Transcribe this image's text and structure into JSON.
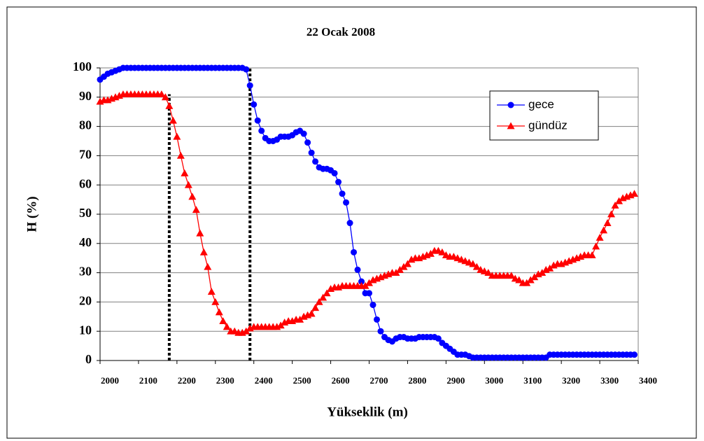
{
  "chart_data": {
    "type": "line",
    "title": "22 Ocak 2008",
    "xlabel": "Yükseklik (m)",
    "ylabel": "H (%)",
    "x": [
      2000,
      2010,
      2020,
      2030,
      2040,
      2050,
      2060,
      2070,
      2080,
      2090,
      2100,
      2110,
      2120,
      2130,
      2140,
      2150,
      2160,
      2170,
      2180,
      2190,
      2200,
      2210,
      2220,
      2230,
      2240,
      2250,
      2260,
      2270,
      2280,
      2290,
      2300,
      2310,
      2320,
      2330,
      2340,
      2350,
      2360,
      2370,
      2380,
      2390,
      2400,
      2410,
      2420,
      2430,
      2440,
      2450,
      2460,
      2470,
      2480,
      2490,
      2500,
      2510,
      2520,
      2530,
      2540,
      2550,
      2560,
      2570,
      2580,
      2590,
      2600,
      2610,
      2620,
      2630,
      2640,
      2650,
      2660,
      2670,
      2680,
      2690,
      2700,
      2710,
      2720,
      2730,
      2740,
      2750,
      2760,
      2770,
      2780,
      2790,
      2800,
      2810,
      2820,
      2830,
      2840,
      2850,
      2860,
      2870,
      2880,
      2890,
      2900,
      2910,
      2920,
      2930,
      2940,
      2950,
      2960,
      2970,
      2980,
      2990,
      3000,
      3010,
      3020,
      3030,
      3040,
      3050,
      3060,
      3070,
      3080,
      3090,
      3100,
      3110,
      3120,
      3130,
      3140,
      3150,
      3160,
      3170,
      3180,
      3190,
      3200,
      3210,
      3220,
      3230,
      3240,
      3250,
      3260,
      3270,
      3280,
      3290,
      3300,
      3310,
      3320,
      3330,
      3340,
      3350,
      3360,
      3370,
      3380,
      3390
    ],
    "series": [
      {
        "name": "gece",
        "color": "#0000ff",
        "marker": "circle",
        "values": [
          96,
          97,
          98,
          98.5,
          99,
          99.5,
          100,
          100,
          100,
          100,
          100,
          100,
          100,
          100,
          100,
          100,
          100,
          100,
          100,
          100,
          100,
          100,
          100,
          100,
          100,
          100,
          100,
          100,
          100,
          100,
          100,
          100,
          100,
          100,
          100,
          100,
          100,
          100,
          99.5,
          94,
          87.5,
          82,
          78.5,
          76,
          75,
          75,
          75.5,
          76.5,
          76.5,
          76.5,
          77,
          78,
          78.5,
          77.5,
          74.5,
          71,
          68,
          66,
          65.5,
          65.5,
          65,
          64,
          61,
          57,
          54,
          47,
          37,
          31,
          27,
          23,
          23,
          19,
          14,
          10,
          8,
          7,
          6.5,
          7.5,
          8,
          8,
          7.5,
          7.5,
          7.5,
          8,
          8,
          8,
          8,
          8,
          7.5,
          6,
          5,
          4,
          3,
          2,
          2,
          2,
          1.5,
          1,
          1,
          1,
          1,
          1,
          1,
          1,
          1,
          1,
          1,
          1,
          1,
          1,
          1,
          1,
          1,
          1,
          1,
          1,
          1,
          2,
          2,
          2,
          2,
          2,
          2,
          2,
          2,
          2,
          2,
          2,
          2,
          2,
          2,
          2,
          2,
          2,
          2,
          2,
          2,
          2,
          2,
          2
        ]
      },
      {
        "name": "gündüz",
        "color": "#ff0000",
        "marker": "triangle",
        "values": [
          88.5,
          89,
          89,
          89.5,
          90,
          90.5,
          91,
          91,
          91,
          91,
          91,
          91,
          91,
          91,
          91,
          91,
          91,
          90,
          87,
          82,
          76.5,
          70,
          64,
          60,
          56,
          51.5,
          43.5,
          37,
          32,
          23.5,
          20,
          16.5,
          13.5,
          11.5,
          10,
          10,
          9.5,
          9.5,
          10,
          11,
          11.5,
          11.5,
          11.5,
          11.5,
          11.5,
          11.5,
          11.5,
          12,
          13,
          13.5,
          13.5,
          14,
          14,
          15,
          15.5,
          16,
          18,
          20,
          21.5,
          23,
          24.5,
          25,
          25,
          25.5,
          25.5,
          25.5,
          25.5,
          25.5,
          25.5,
          25.5,
          26.5,
          27.5,
          28,
          28.5,
          29,
          29.5,
          30,
          30,
          31,
          32,
          33,
          34.5,
          35,
          35,
          35.5,
          36,
          36.5,
          37.5,
          37.5,
          37,
          36,
          35.5,
          35.5,
          35,
          34.5,
          34,
          33.5,
          33,
          32,
          31,
          30.5,
          30,
          29,
          29,
          29,
          29,
          29,
          29,
          28,
          27.5,
          26.5,
          26.5,
          27.5,
          28.5,
          29.5,
          30,
          31,
          31.5,
          32.5,
          33,
          33,
          33.5,
          34,
          34.5,
          35,
          35.5,
          36,
          36,
          36,
          39,
          42,
          44.5,
          47,
          50,
          53,
          54.5,
          55.5,
          56,
          56.5,
          57
        ]
      }
    ],
    "reference_lines": [
      {
        "x": 2180,
        "y": 91
      },
      {
        "x": 2390,
        "y": 100
      }
    ],
    "xlim": [
      2000,
      3400
    ],
    "xticks": [
      2000,
      2100,
      2200,
      2300,
      2400,
      2500,
      2600,
      2700,
      2800,
      2900,
      3000,
      3100,
      3200,
      3300,
      3400
    ],
    "ylim": [
      0,
      100
    ],
    "yticks": [
      0,
      10,
      20,
      30,
      40,
      50,
      60,
      70,
      80,
      90,
      100
    ],
    "grid": true,
    "legend": "upper right"
  }
}
